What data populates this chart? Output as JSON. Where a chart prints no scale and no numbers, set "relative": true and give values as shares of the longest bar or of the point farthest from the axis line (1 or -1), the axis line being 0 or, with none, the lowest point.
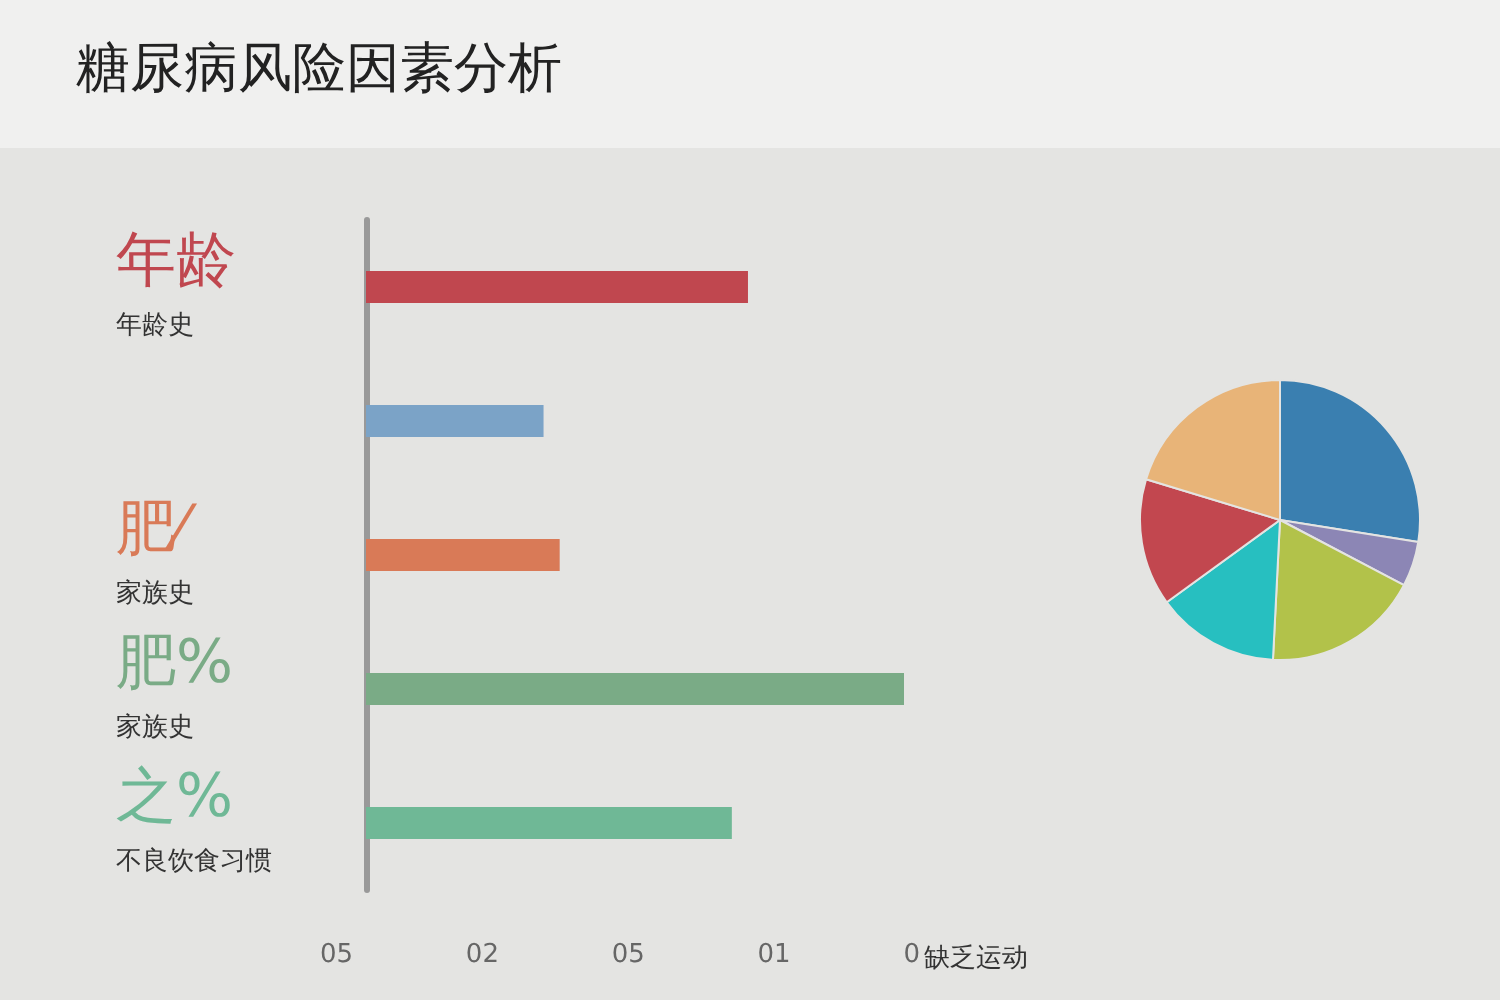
{
  "chart_data": [
    {
      "type": "bar",
      "title": "糖尿病风险因素分析",
      "orientation": "horizontal",
      "relative": true,
      "categories": [
        "年龄史",
        null,
        "家族史",
        "家族史",
        "不良饮食习惯"
      ],
      "values": [
        0.71,
        0.33,
        0.36,
        1,
        0.68
      ],
      "colors": [
        "#c0474f",
        "#7ba3c7",
        "#d97a57",
        "#7aab86",
        "#6fb896"
      ],
      "xlabel": "缺乏运动",
      "annotations": [
        "年龄",
        "肥⁄",
        "肥%",
        "之%",
        "05",
        "02",
        "05",
        "01",
        "0"
      ]
    },
    {
      "type": "pie",
      "categories": [
        null,
        null,
        null,
        null,
        null,
        null
      ],
      "values": [
        27.5,
        5.2,
        18.1,
        14.2,
        14.7,
        20.3
      ],
      "colors": [
        "#3a7fb0",
        "#8c86b5",
        "#b2c24a",
        "#27bfc0",
        "#c2474f",
        "#e8b478"
      ]
    }
  ]
}
